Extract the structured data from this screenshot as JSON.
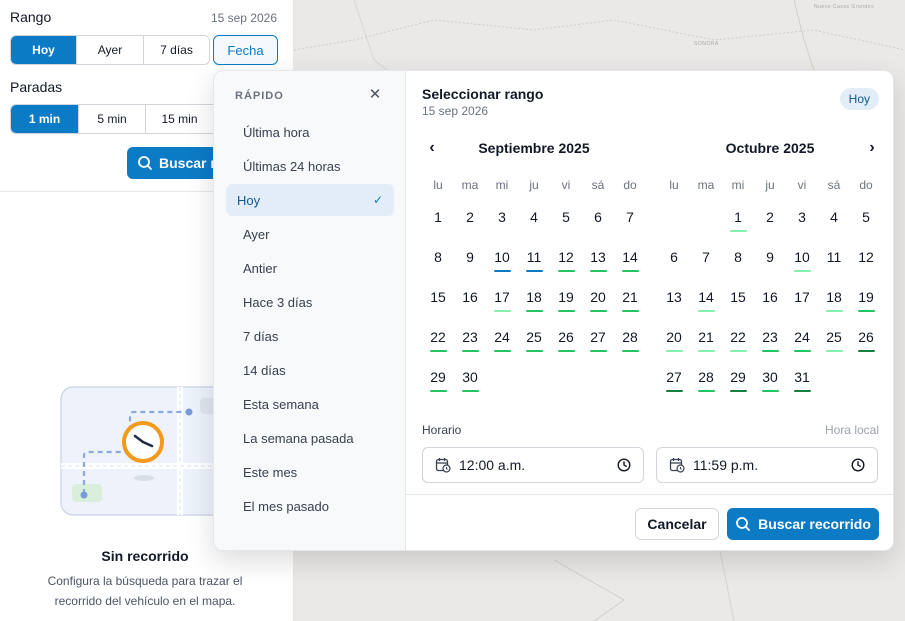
{
  "colors": {
    "accent": "#0b7bc6",
    "bar_blue": "#0b7bc6",
    "bar_green": "#22c55e",
    "bar_light": "#86efac",
    "bar_dark": "#15803d"
  },
  "map": {
    "labels": [
      "SONORA",
      "Nuevo Casas Grandes"
    ]
  },
  "filters": {
    "rango_label": "Rango",
    "rango_date": "15 sep 2026",
    "rango_options": [
      "Hoy",
      "Ayer",
      "7 días"
    ],
    "fecha_label": "Fecha",
    "paradas_label": "Paradas",
    "paradas_options": [
      "1 min",
      "5 min",
      "15 min"
    ],
    "buscar_label": "Buscar r"
  },
  "empty_state": {
    "title": "Sin recorrido",
    "desc": "Configura la búsqueda para trazar el recorrido del vehículo en el mapa."
  },
  "popover": {
    "quick_title": "RÁPIDO",
    "close_icon": "✕",
    "quick_items": [
      {
        "label": "Última hora",
        "active": false
      },
      {
        "label": "Últimas 24 horas",
        "active": false
      },
      {
        "label": "Hoy",
        "active": true
      },
      {
        "label": "Ayer",
        "active": false
      },
      {
        "label": "Antier",
        "active": false
      },
      {
        "label": "Hace 3 días",
        "active": false
      },
      {
        "label": "7 días",
        "active": false
      },
      {
        "label": "14 días",
        "active": false
      },
      {
        "label": "Esta semana",
        "active": false
      },
      {
        "label": "La semana pasada",
        "active": false
      },
      {
        "label": "Este mes",
        "active": false
      },
      {
        "label": "El mes pasado",
        "active": false
      }
    ],
    "title": "Seleccionar rango",
    "subtitle": "15 sep 2026",
    "badge": "Hoy",
    "weekdays": [
      "lu",
      "ma",
      "mi",
      "ju",
      "vi",
      "sá",
      "do"
    ],
    "months": [
      {
        "name": "Septiembre 2025",
        "offset": 0,
        "days": 30,
        "marks": {
          "10": "blue",
          "11": "blue",
          "12": "green",
          "13": "green",
          "14": "green",
          "17": "light",
          "18": "green",
          "19": "green",
          "20": "green",
          "21": "green",
          "22": "green",
          "23": "green",
          "24": "green",
          "25": "green",
          "26": "green",
          "27": "green",
          "28": "green",
          "29": "green",
          "30": "green"
        }
      },
      {
        "name": "Octubre 2025",
        "offset": 2,
        "days": 31,
        "marks": {
          "1": "light",
          "10": "light",
          "14": "light",
          "18": "light",
          "19": "green",
          "20": "light",
          "21": "light",
          "22": "light",
          "23": "green",
          "24": "green",
          "25": "light",
          "26": "dark",
          "27": "dark",
          "28": "green",
          "29": "dark",
          "30": "green",
          "31": "dark"
        }
      }
    ],
    "horario_label": "Horario",
    "hora_local_label": "Hora local",
    "start_time": "12:00 a.m.",
    "end_time": "11:59 p.m.",
    "cancel_label": "Cancelar",
    "search_label": "Buscar recorrido"
  }
}
